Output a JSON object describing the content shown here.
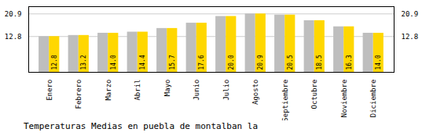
{
  "chart_data": {
    "type": "bar",
    "title": "Temperaturas Medias en puebla de montalban la",
    "categories": [
      "Enero",
      "Febrero",
      "Marzo",
      "Abril",
      "Mayo",
      "Junio",
      "Julio",
      "Agosto",
      "Septiembre",
      "Octubre",
      "Noviembre",
      "Diciembre"
    ],
    "series": [
      {
        "color": "#BEBEBE",
        "values": [
          12.8,
          13.2,
          14.0,
          14.4,
          15.7,
          17.6,
          20.0,
          20.9,
          20.5,
          18.5,
          16.3,
          14.0
        ]
      },
      {
        "color": "#FFD700",
        "values": [
          12.8,
          13.2,
          14.0,
          14.4,
          15.7,
          17.6,
          20.0,
          20.9,
          20.5,
          18.5,
          16.3,
          14.0
        ],
        "value_labels": [
          "12.8",
          "13.2",
          "14.0",
          "14.4",
          "15.7",
          "17.6",
          "20.0",
          "20.9",
          "20.5",
          "18.5",
          "16.3",
          "14.0"
        ]
      }
    ],
    "data_labels": true,
    "ylim": [
      0,
      23.5
    ],
    "yticks": [
      12.8,
      20.9
    ],
    "y2lim": [
      0,
      23.5
    ],
    "y2ticks": [
      12.8,
      20.9
    ],
    "grid": true
  }
}
